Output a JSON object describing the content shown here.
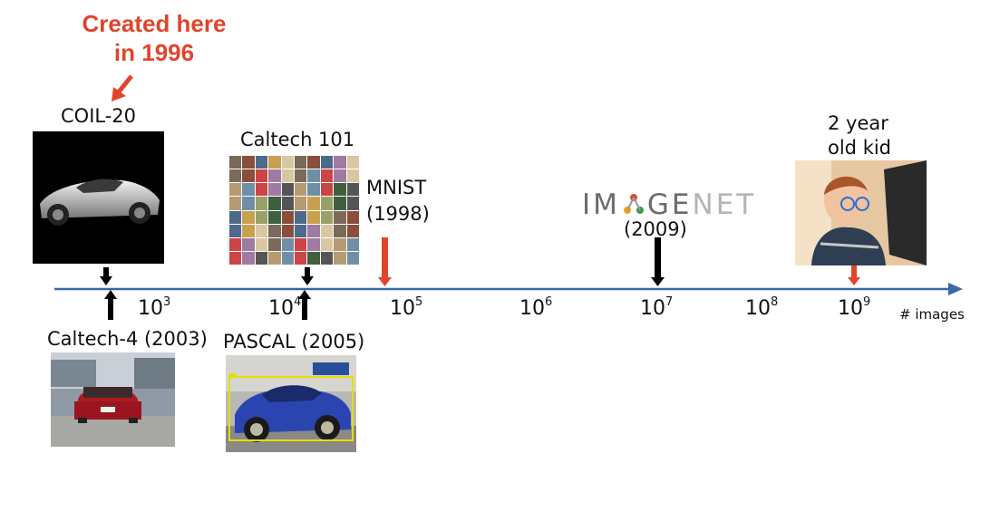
{
  "note": {
    "line1": "Created here",
    "line2": "in 1996"
  },
  "datasets": {
    "coil": "COIL-20",
    "caltech101": "Caltech 101",
    "mnist_line1": "MNIST",
    "mnist_line2": "(1998)",
    "imagenet_year": "(2009)",
    "kid_line1": "2 year",
    "kid_line2": "old kid",
    "caltech4": "Caltech-4 (2003)",
    "pascal": "PASCAL (2005)"
  },
  "imagenet_logo": {
    "part1": "IM",
    "part2": "GE",
    "part3": "NET"
  },
  "axis": {
    "unit": "# images",
    "ticks": [
      {
        "base": "10",
        "exp": "3"
      },
      {
        "base": "10",
        "exp": "4"
      },
      {
        "base": "10",
        "exp": "5"
      },
      {
        "base": "10",
        "exp": "6"
      },
      {
        "base": "10",
        "exp": "7"
      },
      {
        "base": "10",
        "exp": "8"
      },
      {
        "base": "10",
        "exp": "9"
      }
    ]
  },
  "colors": {
    "axis": "#3a67a8",
    "note_red": "#e0452b",
    "marker_red": "#e0452b",
    "marker_black": "#000000"
  }
}
